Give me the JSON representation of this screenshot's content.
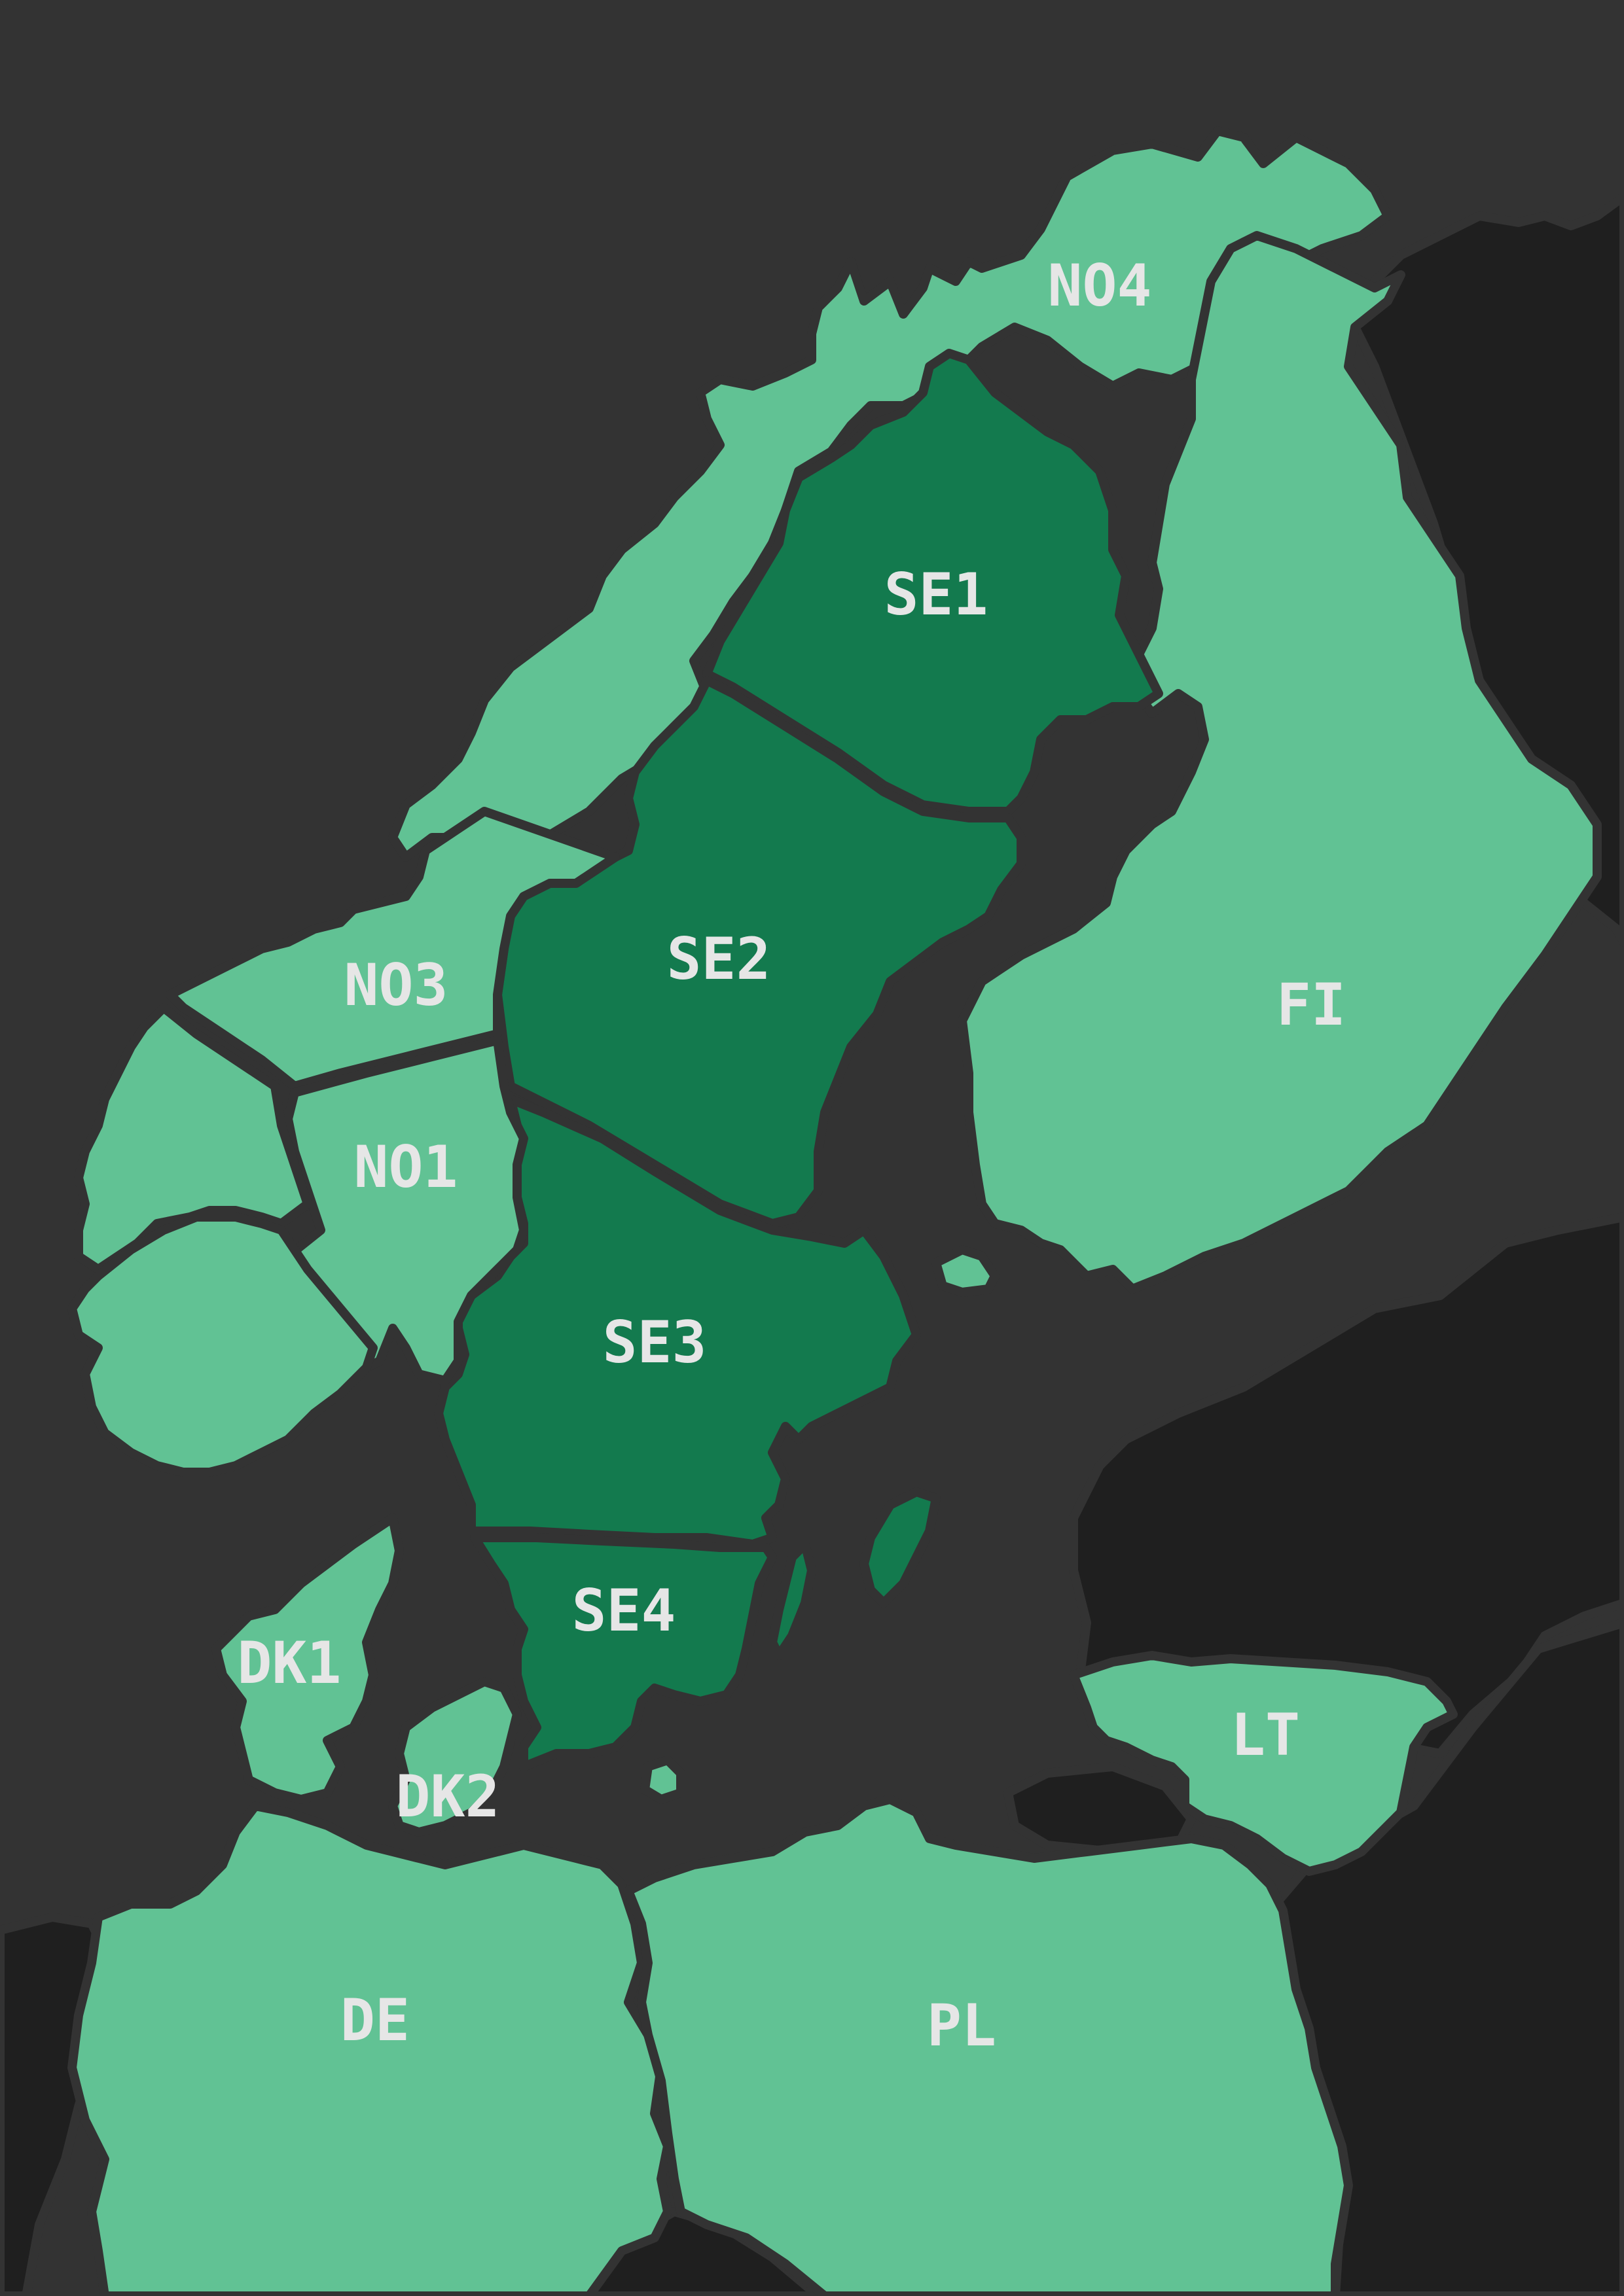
{
  "colors": {
    "sea": "#333333",
    "non_zone_land": "#1f1f1f",
    "highlighted_zone": "#137a4e",
    "other_zone": "#61c294",
    "border": "#333333",
    "label": "#e6e6e6"
  },
  "zones": [
    {
      "id": "NO4",
      "label": "NO4",
      "highlighted": false
    },
    {
      "id": "SE1",
      "label": "SE1",
      "highlighted": true
    },
    {
      "id": "SE2",
      "label": "SE2",
      "highlighted": true
    },
    {
      "id": "SE3",
      "label": "SE3",
      "highlighted": true
    },
    {
      "id": "SE4",
      "label": "SE4",
      "highlighted": true
    },
    {
      "id": "NO3",
      "label": "NO3",
      "highlighted": false
    },
    {
      "id": "NO1",
      "label": "NO1",
      "highlighted": false
    },
    {
      "id": "FI",
      "label": "FI",
      "highlighted": false
    },
    {
      "id": "DK1",
      "label": "DK1",
      "highlighted": false
    },
    {
      "id": "DK2",
      "label": "DK2",
      "highlighted": false
    },
    {
      "id": "LT",
      "label": "LT",
      "highlighted": false
    },
    {
      "id": "DE",
      "label": "DE",
      "highlighted": false
    },
    {
      "id": "PL",
      "label": "PL",
      "highlighted": false
    }
  ]
}
